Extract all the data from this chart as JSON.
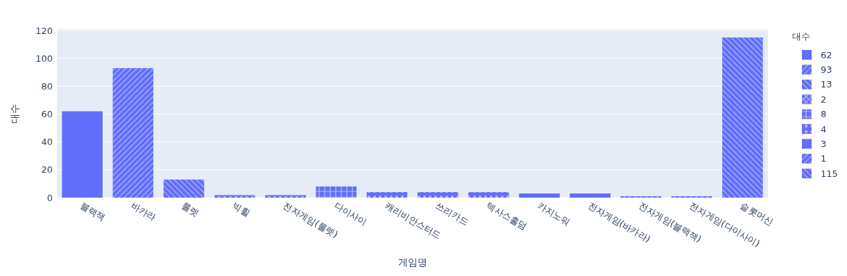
{
  "chart_data": {
    "type": "bar",
    "xlabel": "게임명",
    "ylabel": "대수",
    "legend_title": "대수",
    "categories": [
      "블랙잭",
      "바카라",
      "룰렛",
      "빅휠",
      "전자게임(룰렛)",
      "다이사이",
      "캐리비안스터드",
      "쓰리카드",
      "텍사스홀덤",
      "카지노워",
      "전자게임(바카라)",
      "전자게임(블랙잭)",
      "전자게임(다이사이)",
      "슬롯머신"
    ],
    "series": [
      {
        "name": "62",
        "color": "#636efa",
        "values": [
          62,
          null,
          null,
          null,
          null,
          null,
          null,
          null,
          null,
          null,
          null,
          null,
          null,
          null
        ]
      },
      {
        "name": "93",
        "color": "#636efa",
        "values": [
          null,
          93,
          null,
          null,
          null,
          null,
          null,
          null,
          null,
          null,
          null,
          null,
          null,
          null
        ]
      },
      {
        "name": "13",
        "color": "#636efa",
        "values": [
          null,
          null,
          13,
          null,
          null,
          null,
          null,
          null,
          null,
          null,
          null,
          null,
          null,
          null
        ]
      },
      {
        "name": "2",
        "color": "#636efa",
        "values": [
          null,
          null,
          null,
          2,
          2,
          null,
          null,
          null,
          null,
          null,
          null,
          null,
          null,
          null
        ]
      },
      {
        "name": "8",
        "color": "#636efa",
        "values": [
          null,
          null,
          null,
          null,
          null,
          8,
          null,
          null,
          null,
          null,
          null,
          null,
          null,
          null
        ]
      },
      {
        "name": "4",
        "color": "#636efa",
        "values": [
          null,
          null,
          null,
          null,
          null,
          null,
          4,
          4,
          4,
          null,
          null,
          null,
          null,
          null
        ]
      },
      {
        "name": "3",
        "color": "#636efa",
        "values": [
          null,
          null,
          null,
          null,
          null,
          null,
          null,
          null,
          null,
          3,
          3,
          null,
          null,
          null
        ]
      },
      {
        "name": "1",
        "color": "#636efa",
        "values": [
          null,
          null,
          null,
          null,
          null,
          null,
          null,
          null,
          null,
          null,
          null,
          1,
          1,
          null
        ]
      },
      {
        "name": "115",
        "color": "#636efa",
        "values": [
          null,
          null,
          null,
          null,
          null,
          null,
          null,
          null,
          null,
          null,
          null,
          null,
          null,
          115
        ]
      }
    ],
    "ylim": [
      0,
      121
    ],
    "yticks": [
      0,
      20,
      40,
      60,
      80,
      100,
      120
    ],
    "grid": "y",
    "legend": "right"
  }
}
